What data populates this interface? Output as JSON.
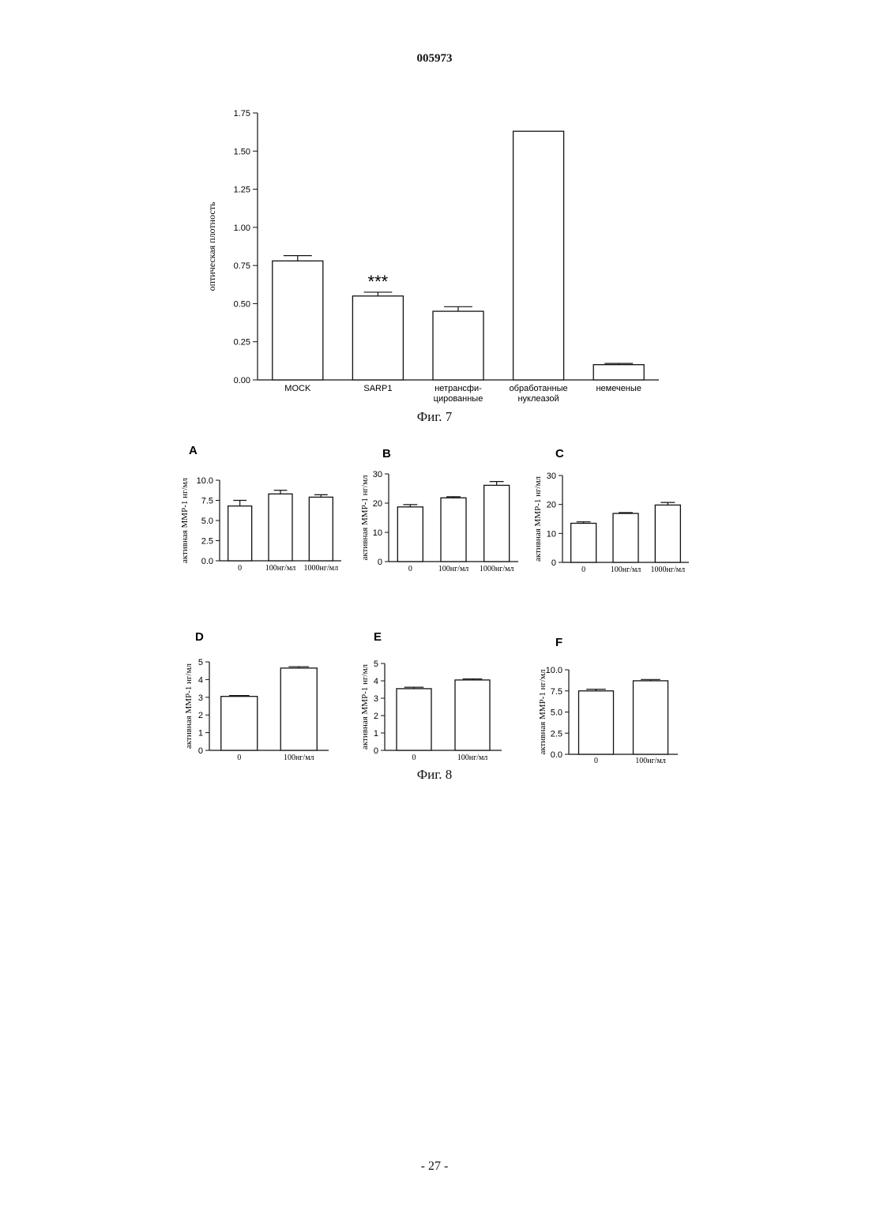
{
  "header": {
    "doc_number": "005973"
  },
  "fig7": {
    "caption": "Фиг. 7"
  },
  "fig8": {
    "caption": "Фиг. 8"
  },
  "footer": {
    "page_number": "- 27 -"
  },
  "chart_data": [
    {
      "id": "fig7",
      "type": "bar",
      "ylabel": "оптическая плотность",
      "ylim": [
        0,
        1.75
      ],
      "yticks": [
        "0.00",
        "0.25",
        "0.50",
        "0.75",
        "1.00",
        "1.25",
        "1.50",
        "1.75"
      ],
      "categories": [
        [
          "MOCK"
        ],
        [
          "SARP1"
        ],
        [
          "нетрансфи-",
          "цированные"
        ],
        [
          "обработанные",
          "нуклеазой"
        ],
        [
          "немеченые"
        ]
      ],
      "values": [
        0.78,
        0.55,
        0.45,
        1.63,
        0.1
      ],
      "errors": [
        0.035,
        0.025,
        0.03,
        0,
        0.008
      ],
      "annotations": [
        {
          "category_index": 1,
          "text": "***"
        }
      ],
      "grid": false
    },
    {
      "id": "A",
      "panel": "A",
      "type": "bar",
      "ylabel": "активная ММР-1 нг/мл",
      "ylim": [
        0,
        10
      ],
      "yticks": [
        "0.0",
        "2.5",
        "5.0",
        "7.5",
        "10.0"
      ],
      "categories": [
        "0",
        "100нг/мл",
        "1000нг/мл"
      ],
      "values": [
        6.8,
        8.3,
        7.9
      ],
      "errors": [
        0.7,
        0.45,
        0.3
      ]
    },
    {
      "id": "B",
      "panel": "B",
      "type": "bar",
      "ylabel": "активная ММР-1 нг/мл",
      "ylim": [
        0,
        30
      ],
      "yticks": [
        "0",
        "10",
        "20",
        "30"
      ],
      "categories": [
        "0",
        "100нг/мл",
        "1000нг/мл"
      ],
      "values": [
        18.7,
        21.8,
        26.1
      ],
      "errors": [
        0.8,
        0.4,
        1.3
      ]
    },
    {
      "id": "C",
      "panel": "C",
      "type": "bar",
      "ylabel": "активная ММР-1 нг/мл",
      "ylim": [
        0,
        30
      ],
      "yticks": [
        "0",
        "10",
        "20",
        "30"
      ],
      "categories": [
        "0",
        "100нг/мл",
        "1000нг/мл"
      ],
      "values": [
        13.5,
        16.9,
        19.8
      ],
      "errors": [
        0.5,
        0.3,
        0.9
      ]
    },
    {
      "id": "D",
      "panel": "D",
      "type": "bar",
      "ylabel": "активная ММР-1 нг/мл",
      "ylim": [
        0,
        5
      ],
      "yticks": [
        "0",
        "1",
        "2",
        "3",
        "4",
        "5"
      ],
      "categories": [
        "0",
        "100нг/мл"
      ],
      "values": [
        3.05,
        4.65
      ],
      "errors": [
        0.05,
        0.08
      ]
    },
    {
      "id": "E",
      "panel": "E",
      "type": "bar",
      "ylabel": "активная ММР-1 нг/мл",
      "ylim": [
        0,
        5
      ],
      "yticks": [
        "0",
        "1",
        "2",
        "3",
        "4",
        "5"
      ],
      "categories": [
        "0",
        "100нг/мл"
      ],
      "values": [
        3.55,
        4.05
      ],
      "errors": [
        0.08,
        0.06
      ]
    },
    {
      "id": "F",
      "panel": "F",
      "type": "bar",
      "ylabel": "активная ММР-1 нг/мл",
      "ylim": [
        0,
        10
      ],
      "yticks": [
        "0.0",
        "2.5",
        "5.0",
        "7.5",
        "10.0"
      ],
      "categories": [
        "0",
        "100нг/мл"
      ],
      "values": [
        7.5,
        8.7
      ],
      "errors": [
        0.2,
        0.15
      ]
    }
  ]
}
